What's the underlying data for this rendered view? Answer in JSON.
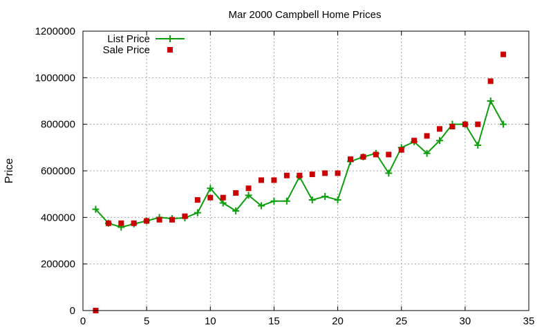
{
  "chart_data": {
    "type": "line",
    "title": "Mar 2000 Campbell Home Prices",
    "xlabel": "",
    "ylabel": "Price",
    "xlim": [
      0,
      35
    ],
    "ylim": [
      0,
      1200000
    ],
    "xticks": [
      0,
      5,
      10,
      15,
      20,
      25,
      30,
      35
    ],
    "yticks": [
      0,
      200000,
      400000,
      600000,
      800000,
      1000000,
      1200000
    ],
    "grid": true,
    "legend_position": "top-left",
    "series": [
      {
        "name": "List Price",
        "style": "lines+points",
        "marker": "plus",
        "color": "#0a9e0a",
        "x": [
          1,
          2,
          3,
          4,
          5,
          6,
          7,
          8,
          9,
          10,
          11,
          12,
          13,
          14,
          15,
          16,
          17,
          18,
          19,
          20,
          21,
          22,
          23,
          24,
          25,
          26,
          27,
          28,
          29,
          30,
          31,
          32,
          33
        ],
        "y": [
          435000,
          375000,
          358000,
          372000,
          385000,
          400000,
          395000,
          398000,
          420000,
          525000,
          462000,
          428000,
          495000,
          450000,
          470000,
          470000,
          575000,
          475000,
          490000,
          475000,
          640000,
          660000,
          675000,
          590000,
          700000,
          725000,
          675000,
          730000,
          800000,
          800000,
          710000,
          900000,
          800000
        ]
      },
      {
        "name": "Sale Price",
        "style": "points",
        "marker": "square",
        "color": "#cc0000",
        "x": [
          1,
          2,
          3,
          4,
          5,
          6,
          7,
          8,
          9,
          10,
          11,
          12,
          13,
          14,
          15,
          16,
          17,
          18,
          19,
          20,
          21,
          22,
          23,
          24,
          25,
          26,
          27,
          28,
          29,
          30,
          31,
          32,
          33
        ],
        "y": [
          0,
          375000,
          375000,
          375000,
          385000,
          390000,
          390000,
          405000,
          475000,
          485000,
          485000,
          505000,
          525000,
          560000,
          560000,
          580000,
          580000,
          585000,
          590000,
          590000,
          650000,
          660000,
          670000,
          670000,
          690000,
          730000,
          750000,
          780000,
          790000,
          800000,
          800000,
          985000,
          1100000
        ]
      }
    ]
  }
}
